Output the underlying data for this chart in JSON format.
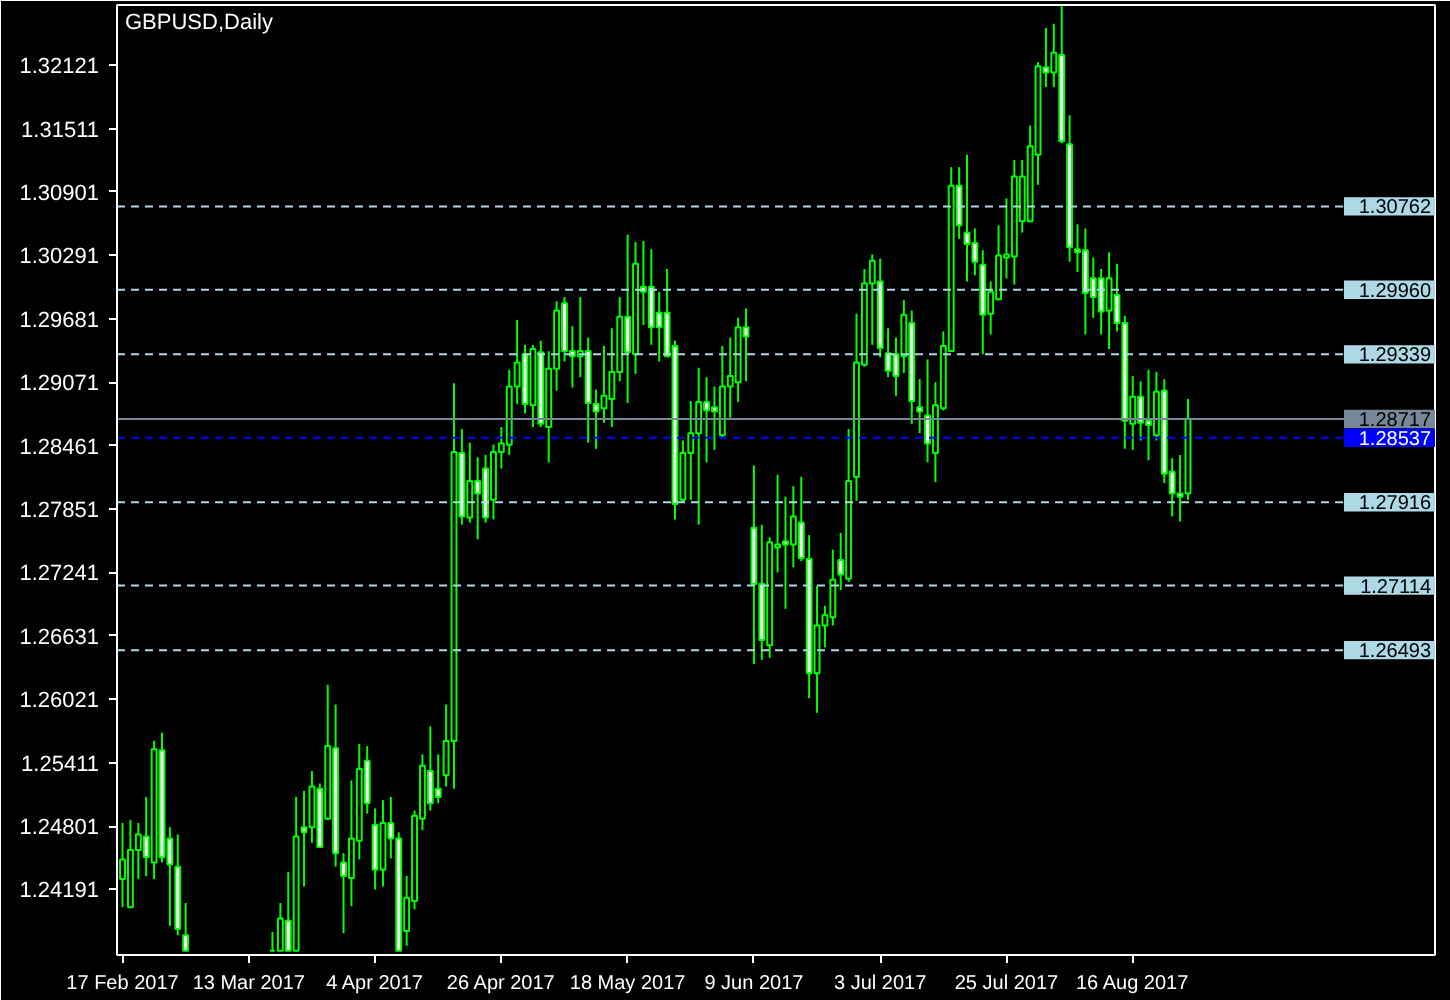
{
  "chart_data": {
    "type": "candlestick",
    "title": "GBPUSD,Daily",
    "color": "#00ff00",
    "categories": [
      "17 Feb 2017",
      null,
      null,
      null,
      null,
      null,
      null,
      null,
      null,
      null,
      null,
      null,
      null,
      null,
      null,
      null,
      "13 Mar 2017",
      null,
      null,
      null,
      null,
      null,
      null,
      null,
      null,
      null,
      null,
      null,
      null,
      null,
      null,
      null,
      "4 Apr 2017",
      null,
      null,
      null,
      null,
      null,
      null,
      null,
      null,
      null,
      null,
      null,
      null,
      null,
      null,
      null,
      "26 Apr 2017",
      null,
      null,
      null,
      null,
      null,
      null,
      null,
      null,
      null,
      null,
      null,
      null,
      null,
      null,
      null,
      "18 May 2017",
      null,
      null,
      null,
      null,
      null,
      null,
      null,
      null,
      null,
      null,
      null,
      null,
      null,
      null,
      null,
      "9 Jun 2017",
      null,
      null,
      null,
      null,
      null,
      null,
      null,
      null,
      null,
      null,
      null,
      null,
      null,
      null,
      null,
      "3 Jul 2017",
      null,
      null,
      null,
      null,
      null,
      null,
      null,
      null,
      null,
      null,
      null,
      null,
      null,
      null,
      null,
      "25 Jul 2017",
      null,
      null,
      null,
      null,
      null,
      null,
      null,
      null,
      null,
      null,
      null,
      null,
      null,
      null,
      null,
      "16 Aug 2017",
      null,
      null,
      null,
      null,
      null,
      null,
      null
    ],
    "ohlc": [
      [
        1.2429,
        1.2483,
        1.2402,
        1.2448
      ],
      [
        1.2402,
        1.2486,
        1.2402,
        1.2457
      ],
      [
        1.2457,
        1.2483,
        1.2429,
        1.2472
      ],
      [
        1.247,
        1.2508,
        1.2432,
        1.245
      ],
      [
        1.2445,
        1.2562,
        1.2429,
        1.2554
      ],
      [
        1.2553,
        1.257,
        1.2445,
        1.245
      ],
      [
        1.2468,
        1.2479,
        1.2384,
        1.2443
      ],
      [
        1.2441,
        1.2472,
        1.2375,
        1.2381
      ],
      [
        1.2375,
        1.2406,
        1.236,
        1.236
      ],
      null,
      null,
      null,
      null,
      null,
      null,
      null,
      null,
      null,
      null,
      [
        1.236,
        1.2378,
        1.236,
        1.236
      ],
      [
        1.236,
        1.2406,
        1.236,
        1.2391
      ],
      [
        1.2389,
        1.2436,
        1.236,
        1.236
      ],
      [
        1.236,
        1.2508,
        1.236,
        1.247
      ],
      [
        1.2479,
        1.2514,
        1.2422,
        1.2474
      ],
      [
        1.2479,
        1.2533,
        1.2464,
        1.2518
      ],
      [
        1.2516,
        1.2521,
        1.2459,
        1.246
      ],
      [
        1.2487,
        1.2616,
        1.2486,
        1.2557
      ],
      [
        1.2555,
        1.2597,
        1.2441,
        1.2454
      ],
      [
        1.2445,
        1.2454,
        1.2377,
        1.2432
      ],
      [
        1.243,
        1.2524,
        1.2403,
        1.2468
      ],
      [
        1.2466,
        1.2559,
        1.2448,
        1.2535
      ],
      [
        1.2543,
        1.2557,
        1.2492,
        1.2502
      ],
      [
        1.2481,
        1.2497,
        1.2419,
        1.2438
      ],
      [
        1.2438,
        1.2505,
        1.2422,
        1.2483
      ],
      [
        1.2483,
        1.2508,
        1.2449,
        1.2468
      ],
      [
        1.2468,
        1.2474,
        1.236,
        1.236
      ],
      [
        1.2379,
        1.2432,
        1.2365,
        1.2411
      ],
      [
        1.2408,
        1.2495,
        1.24,
        1.249
      ],
      [
        1.2487,
        1.2549,
        1.2476,
        1.2538
      ],
      [
        1.2533,
        1.2576,
        1.2495,
        1.2502
      ],
      [
        1.2516,
        1.2549,
        1.2502,
        1.2508
      ],
      [
        1.2529,
        1.2597,
        1.2518,
        1.2562
      ],
      [
        1.2562,
        1.2906,
        1.2516,
        1.284
      ],
      [
        1.2839,
        1.2862,
        1.277,
        1.2778
      ],
      [
        1.2777,
        1.2849,
        1.2772,
        1.2812
      ],
      [
        1.2812,
        1.2835,
        1.2756,
        1.28
      ],
      [
        1.2824,
        1.2837,
        1.2772,
        1.2777
      ],
      [
        1.2794,
        1.2847,
        1.2775,
        1.284
      ],
      [
        1.284,
        1.2864,
        1.2824,
        1.2848
      ],
      [
        1.2847,
        1.2919,
        1.2837,
        1.2903
      ],
      [
        1.2903,
        1.2967,
        1.2886,
        1.2926
      ],
      [
        1.2934,
        1.2943,
        1.2877,
        1.2886
      ],
      [
        1.2885,
        1.2943,
        1.2864,
        1.2939
      ],
      [
        1.2936,
        1.2947,
        1.2864,
        1.2867
      ],
      [
        1.2864,
        1.2937,
        1.283,
        1.292
      ],
      [
        1.292,
        1.2985,
        1.2899,
        1.2976
      ],
      [
        1.2983,
        1.2989,
        1.2927,
        1.2937
      ],
      [
        1.2937,
        1.2961,
        1.2902,
        1.2932
      ],
      [
        1.2932,
        1.2989,
        1.2912,
        1.2937
      ],
      [
        1.2937,
        1.295,
        1.2849,
        1.2887
      ],
      [
        1.2886,
        1.29,
        1.2843,
        1.2879
      ],
      [
        1.2882,
        1.2942,
        1.2868,
        1.2894
      ],
      [
        1.2891,
        1.2959,
        1.2864,
        1.2917
      ],
      [
        1.2917,
        1.2989,
        1.2908,
        1.297
      ],
      [
        1.297,
        1.3049,
        1.2887,
        1.2936
      ],
      [
        1.2934,
        1.3042,
        1.2915,
        1.3021
      ],
      [
        1.2999,
        1.3043,
        1.2962,
        1.2994
      ],
      [
        1.2999,
        1.3035,
        1.2943,
        1.296
      ],
      [
        1.2974,
        1.2994,
        1.2927,
        1.296
      ],
      [
        1.2974,
        1.3016,
        1.2931,
        1.2932
      ],
      [
        1.2942,
        1.2947,
        1.2775,
        1.279
      ],
      [
        1.2794,
        1.2851,
        1.2791,
        1.2839
      ],
      [
        1.2839,
        1.2889,
        1.2794,
        1.2858
      ],
      [
        1.2858,
        1.2921,
        1.277,
        1.2888
      ],
      [
        1.2888,
        1.2912,
        1.283,
        1.288
      ],
      [
        1.2883,
        1.2903,
        1.2842,
        1.2879
      ],
      [
        1.2856,
        1.2942,
        1.2854,
        1.2903
      ],
      [
        1.2903,
        1.295,
        1.2873,
        1.2913
      ],
      [
        1.2907,
        1.2969,
        1.2888,
        1.296
      ],
      [
        1.296,
        1.2978,
        1.2908,
        1.2951
      ],
      [
        1.2767,
        1.2827,
        1.2636,
        1.2713
      ],
      [
        1.2713,
        1.277,
        1.264,
        1.2659
      ],
      [
        1.2654,
        1.2758,
        1.2642,
        1.2753
      ],
      [
        1.2748,
        1.2818,
        1.2724,
        1.2751
      ],
      [
        1.2754,
        1.2797,
        1.2689,
        1.2751
      ],
      [
        1.2751,
        1.2807,
        1.2729,
        1.2778
      ],
      [
        1.2772,
        1.2816,
        1.2735,
        1.2738
      ],
      [
        1.2737,
        1.276,
        1.2603,
        1.2627
      ],
      [
        1.2627,
        1.2711,
        1.2589,
        1.2673
      ],
      [
        1.2673,
        1.2692,
        1.2652,
        1.2683
      ],
      [
        1.2681,
        1.2746,
        1.2673,
        1.2717
      ],
      [
        1.2736,
        1.2762,
        1.2707,
        1.2722
      ],
      [
        1.2718,
        1.2862,
        1.2715,
        1.2812
      ],
      [
        1.2816,
        1.2973,
        1.2793,
        1.2926
      ],
      [
        1.2924,
        1.3016,
        1.2922,
        1.3002
      ],
      [
        1.3002,
        1.303,
        1.2943,
        1.3024
      ],
      [
        1.3004,
        1.3026,
        1.2931,
        1.294
      ],
      [
        1.2935,
        1.2959,
        1.2912,
        1.2918
      ],
      [
        1.2934,
        1.295,
        1.2894,
        1.2913
      ],
      [
        1.2932,
        1.2986,
        1.2916,
        1.2972
      ],
      [
        1.2964,
        1.2976,
        1.2867,
        1.2889
      ],
      [
        1.2883,
        1.291,
        1.2858,
        1.2879
      ],
      [
        1.2875,
        1.2929,
        1.283,
        1.2848
      ],
      [
        1.2839,
        1.2907,
        1.2811,
        1.2885
      ],
      [
        1.2882,
        1.2956,
        1.288,
        1.2942
      ],
      [
        1.2937,
        1.3114,
        1.2937,
        1.3096
      ],
      [
        1.3096,
        1.3114,
        1.3045,
        1.3058
      ],
      [
        1.3051,
        1.3126,
        1.3004,
        1.304
      ],
      [
        1.3041,
        1.3055,
        1.301,
        1.3023
      ],
      [
        1.302,
        1.3034,
        1.2934,
        1.2972
      ],
      [
        1.2973,
        1.3004,
        1.2953,
        1.2994
      ],
      [
        1.2987,
        1.3058,
        1.2986,
        1.3029
      ],
      [
        1.3027,
        1.3084,
        1.3007,
        1.303
      ],
      [
        1.3028,
        1.3121,
        1.3001,
        1.3105
      ],
      [
        1.3062,
        1.3121,
        1.3051,
        1.3105
      ],
      [
        1.3062,
        1.3154,
        1.3061,
        1.3134
      ],
      [
        1.3126,
        1.3215,
        1.3097,
        1.3211
      ],
      [
        1.321,
        1.3248,
        1.3191,
        1.3205
      ],
      [
        1.3205,
        1.3252,
        1.3191,
        1.3224
      ],
      [
        1.3222,
        1.3269,
        1.3137,
        1.3139
      ],
      [
        1.3136,
        1.3164,
        1.3023,
        1.3037
      ],
      [
        1.3035,
        1.3059,
        1.3013,
        1.3032
      ],
      [
        1.3034,
        1.3055,
        1.2953,
        1.2993
      ],
      [
        1.3007,
        1.3027,
        1.2969,
        1.2989
      ],
      [
        1.3007,
        1.3016,
        1.2953,
        1.2975
      ],
      [
        1.2976,
        1.3032,
        1.2939,
        1.3007
      ],
      [
        1.2991,
        1.3021,
        1.2956,
        1.2964
      ],
      [
        1.2964,
        1.2971,
        1.2843,
        1.287
      ],
      [
        1.2867,
        1.2913,
        1.2842,
        1.2893
      ],
      [
        1.2893,
        1.2908,
        1.2851,
        1.2868
      ],
      [
        1.287,
        1.2919,
        1.2832,
        1.2866
      ],
      [
        1.2856,
        1.2917,
        1.2851,
        1.2898
      ],
      [
        1.2899,
        1.291,
        1.281,
        1.2819
      ],
      [
        1.2821,
        1.2834,
        1.2778,
        1.28
      ],
      [
        1.28,
        1.2837,
        1.2773,
        1.2797
      ],
      [
        1.28,
        1.2891,
        1.2794,
        1.2872
      ]
    ],
    "ylim": [
      1.2356,
      1.327
    ],
    "yticks": [
      1.32121,
      1.31511,
      1.30901,
      1.30291,
      1.29681,
      1.29071,
      1.28461,
      1.27851,
      1.27241,
      1.26631,
      1.26021,
      1.25411,
      1.24801,
      1.24191
    ],
    "ref_lines": [
      {
        "axis": "y",
        "value": 1.30762,
        "label": "1.30762",
        "color": "#add8e6",
        "line_style": "dashed"
      },
      {
        "axis": "y",
        "value": 1.2996,
        "label": "1.29960",
        "color": "#add8e6",
        "line_style": "dashed"
      },
      {
        "axis": "y",
        "value": 1.29339,
        "label": "1.29339",
        "color": "#add8e6",
        "line_style": "dashed"
      },
      {
        "axis": "y",
        "value": 1.28717,
        "label": "1.28717",
        "color": "#778899",
        "line_style": "solid"
      },
      {
        "axis": "y",
        "value": 1.28537,
        "label": "1.28537",
        "color": "#0000ff",
        "line_style": "dashed"
      },
      {
        "axis": "y",
        "value": 1.27916,
        "label": "1.27916",
        "color": "#add8e6",
        "line_style": "dashed"
      },
      {
        "axis": "y",
        "value": 1.27114,
        "label": "1.27114",
        "color": "#add8e6",
        "line_style": "dashed"
      },
      {
        "axis": "y",
        "value": 1.26493,
        "label": "1.26493",
        "color": "#add8e6",
        "line_style": "dashed"
      }
    ]
  }
}
